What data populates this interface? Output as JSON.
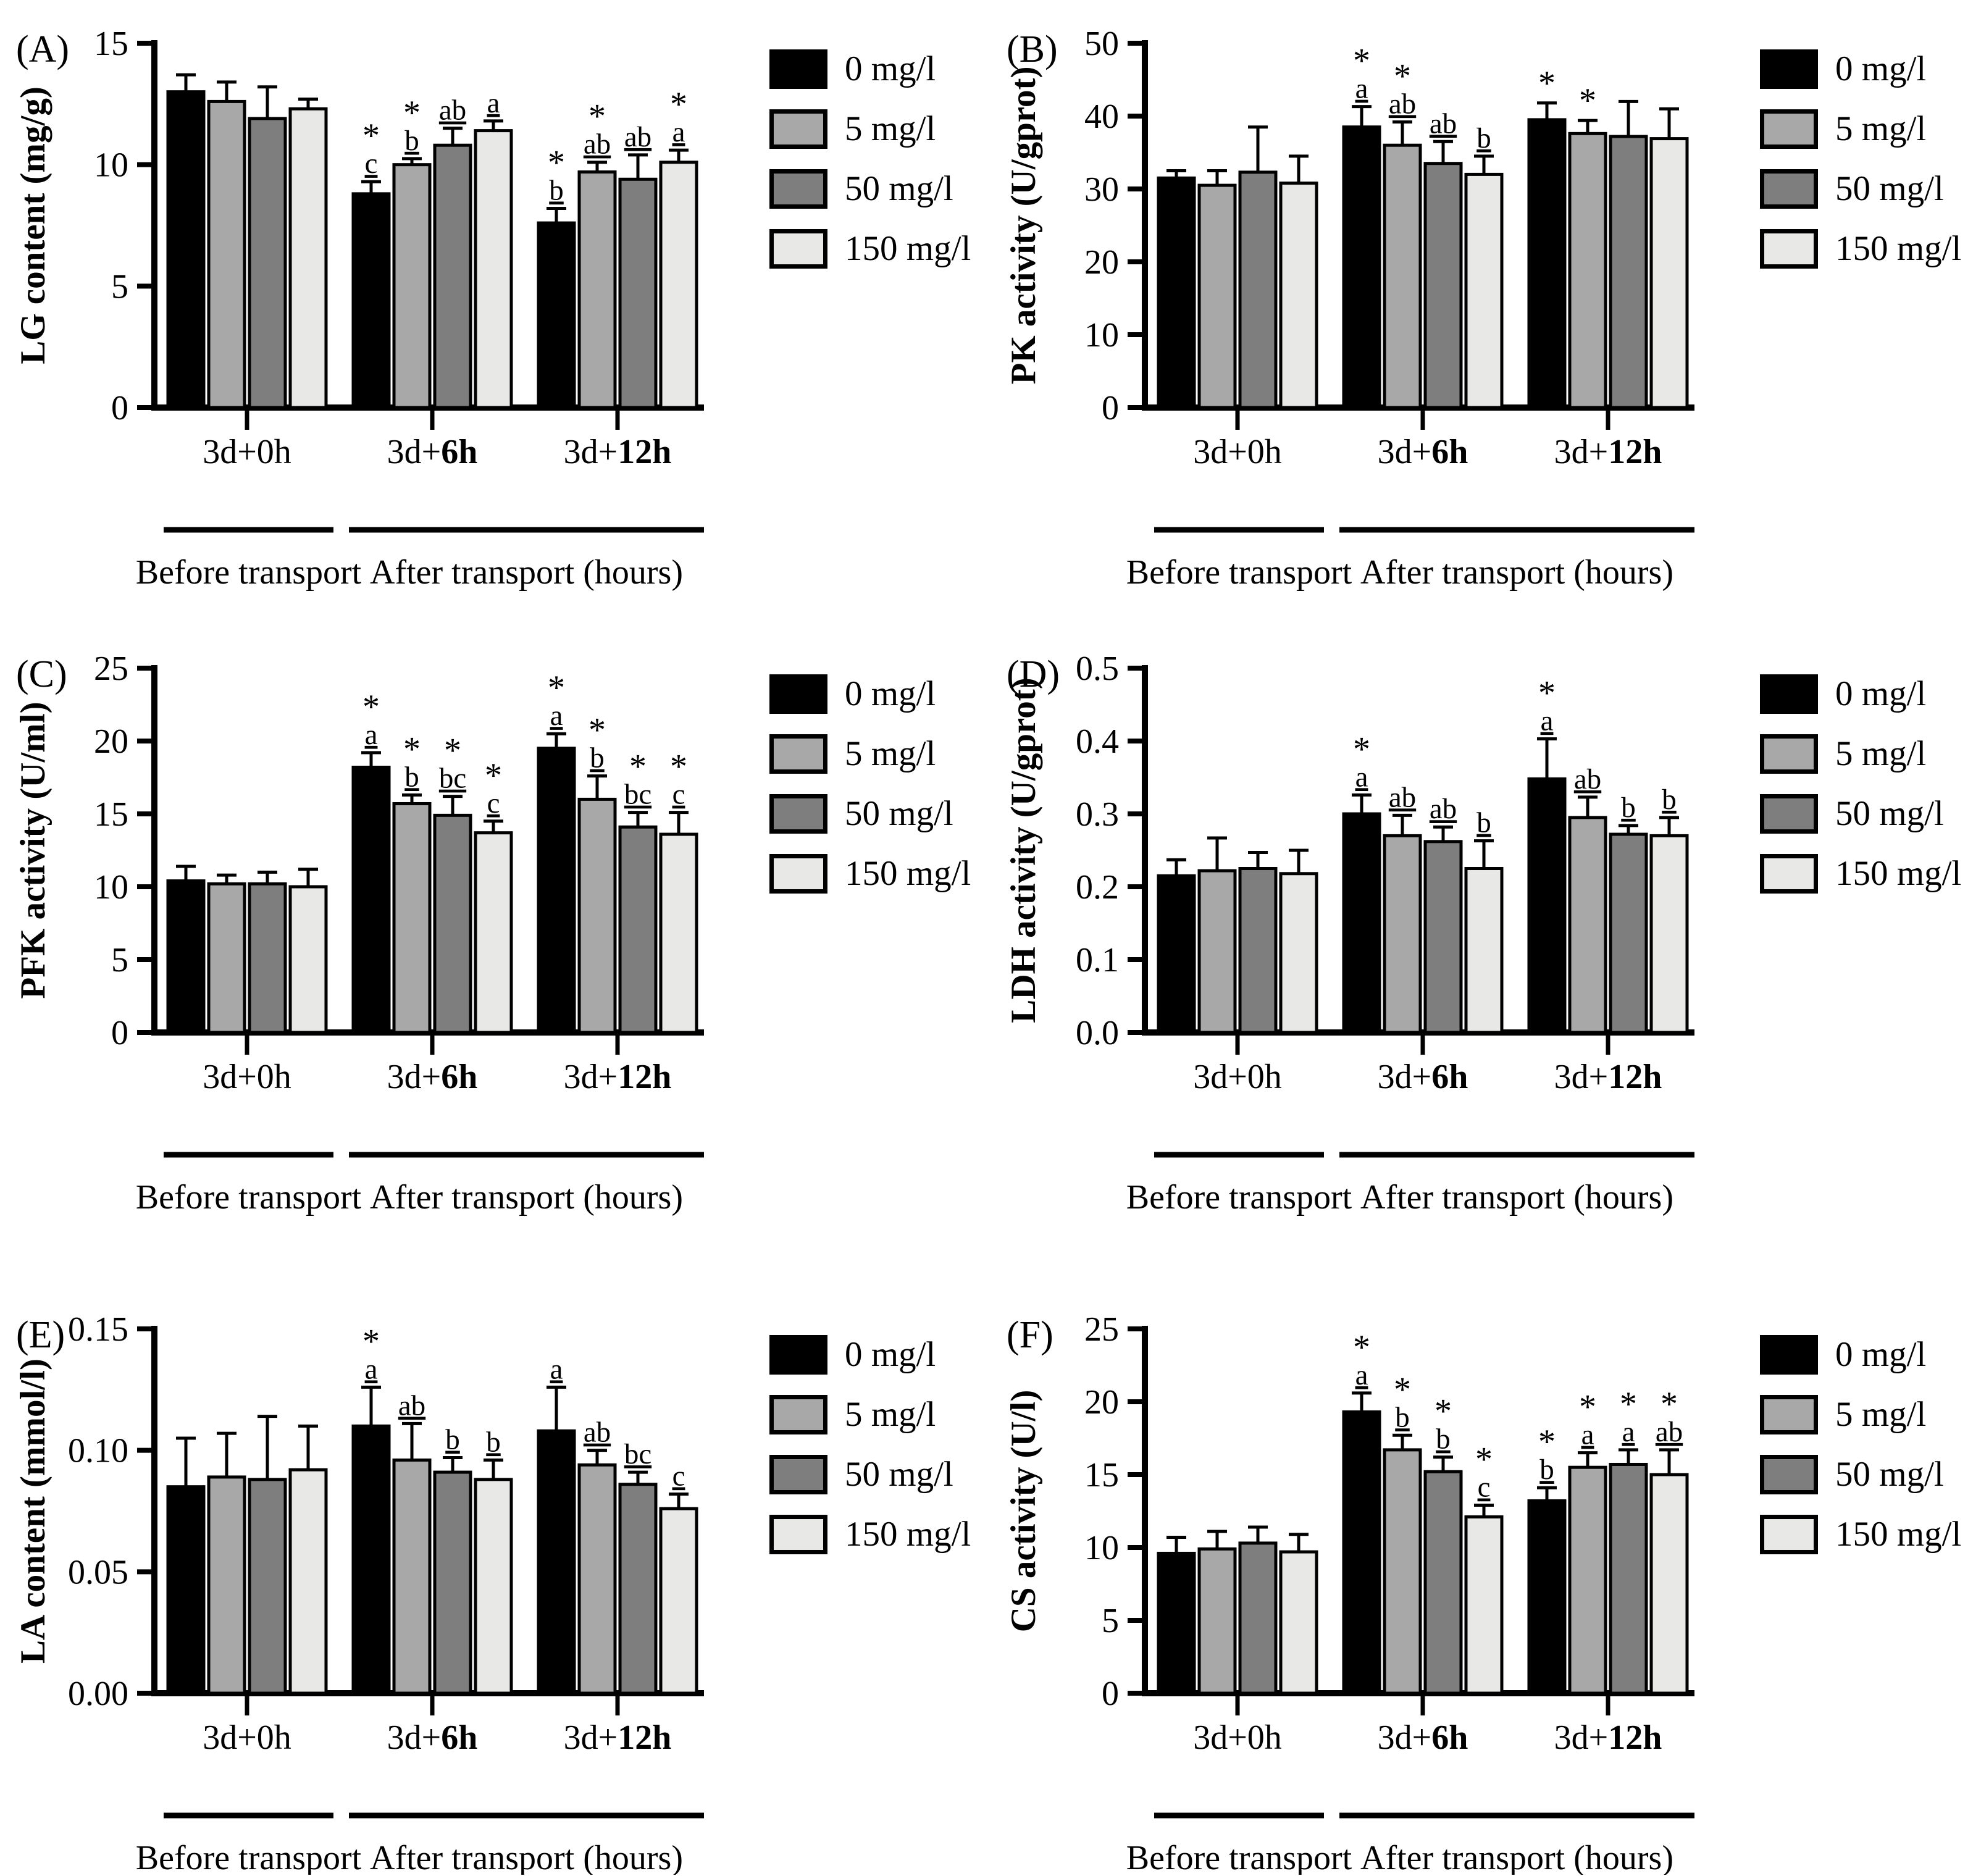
{
  "figure": {
    "legend": {
      "items": [
        {
          "label": "0 mg/l",
          "color": "#000000"
        },
        {
          "label": "5 mg/l",
          "color": "#a8a8a8"
        },
        {
          "label": "50 mg/l",
          "color": "#7e7e7e"
        },
        {
          "label": "150 mg/l",
          "color": "#e8e8e6"
        }
      ]
    },
    "x_groups": [
      {
        "prefix": "3d+",
        "suffix": "0h",
        "suffix_bold": false
      },
      {
        "prefix": "3d+",
        "suffix": "6h",
        "suffix_bold": true
      },
      {
        "prefix": "3d+",
        "suffix": "12h",
        "suffix_bold": true
      }
    ],
    "brackets": [
      {
        "label": "Before transport",
        "from_group": 0,
        "to_group": 0
      },
      {
        "label": "After transport (hours)",
        "from_group": 1,
        "to_group": 2
      }
    ]
  },
  "chart_data": [
    {
      "type": "bar",
      "panel": "(A)",
      "ylabel": "LG content (mg/g)",
      "ylim": [
        0,
        15
      ],
      "yticks": [
        0,
        5,
        10,
        15
      ],
      "ytick_labels": [
        "0",
        "5",
        "10",
        "15"
      ],
      "categories": [
        "3d+0h",
        "3d+6h",
        "3d+12h"
      ],
      "series": [
        {
          "name": "0 mg/l",
          "color": "#000000",
          "values": [
            13.0,
            8.8,
            7.6
          ],
          "errors": [
            0.7,
            0.5,
            0.6
          ],
          "annotations": [
            "",
            "*c",
            "*b"
          ]
        },
        {
          "name": "5 mg/l",
          "color": "#a8a8a8",
          "values": [
            12.6,
            10.0,
            9.7
          ],
          "errors": [
            0.8,
            0.25,
            0.4
          ],
          "annotations": [
            "",
            "*b",
            "*ab"
          ]
        },
        {
          "name": "50 mg/l",
          "color": "#7e7e7e",
          "values": [
            11.9,
            10.8,
            9.4
          ],
          "errors": [
            1.3,
            0.7,
            1.0
          ],
          "annotations": [
            "",
            "ab",
            "ab"
          ]
        },
        {
          "name": "150 mg/l",
          "color": "#e8e8e6",
          "values": [
            12.3,
            11.4,
            10.1
          ],
          "errors": [
            0.4,
            0.4,
            0.5
          ],
          "annotations": [
            "",
            "a",
            "*a"
          ]
        }
      ]
    },
    {
      "type": "bar",
      "panel": "(B)",
      "ylabel": "PK activity (U/gprot)",
      "ylim": [
        0,
        50
      ],
      "yticks": [
        0,
        10,
        20,
        30,
        40,
        50
      ],
      "ytick_labels": [
        "0",
        "10",
        "20",
        "30",
        "40",
        "50"
      ],
      "categories": [
        "3d+0h",
        "3d+6h",
        "3d+12h"
      ],
      "series": [
        {
          "name": "0 mg/l",
          "color": "#000000",
          "values": [
            31.5,
            38.5,
            39.5
          ],
          "errors": [
            1.0,
            2.8,
            2.3
          ],
          "annotations": [
            "",
            "*a",
            "*"
          ]
        },
        {
          "name": "5 mg/l",
          "color": "#a8a8a8",
          "values": [
            30.5,
            36.0,
            37.6
          ],
          "errors": [
            2.0,
            3.2,
            1.8
          ],
          "annotations": [
            "",
            "*ab",
            "*"
          ]
        },
        {
          "name": "50 mg/l",
          "color": "#7e7e7e",
          "values": [
            32.3,
            33.5,
            37.2
          ],
          "errors": [
            6.2,
            3.0,
            4.8
          ],
          "annotations": [
            "",
            "ab",
            ""
          ]
        },
        {
          "name": "150 mg/l",
          "color": "#e8e8e6",
          "values": [
            30.8,
            32.0,
            36.9
          ],
          "errors": [
            3.7,
            2.5,
            4.1
          ],
          "annotations": [
            "",
            "b",
            ""
          ]
        }
      ]
    },
    {
      "type": "bar",
      "panel": "(C)",
      "ylabel": "PFK activity (U/ml)",
      "ylim": [
        0,
        25
      ],
      "yticks": [
        0,
        5,
        10,
        15,
        20,
        25
      ],
      "ytick_labels": [
        "0",
        "5",
        "10",
        "15",
        "20",
        "25"
      ],
      "categories": [
        "3d+0h",
        "3d+6h",
        "3d+12h"
      ],
      "series": [
        {
          "name": "0 mg/l",
          "color": "#000000",
          "values": [
            10.4,
            18.2,
            19.5
          ],
          "errors": [
            1.0,
            1.0,
            1.0
          ],
          "annotations": [
            "",
            "*a",
            "*a"
          ]
        },
        {
          "name": "5 mg/l",
          "color": "#a8a8a8",
          "values": [
            10.2,
            15.7,
            16.0
          ],
          "errors": [
            0.6,
            0.6,
            1.6
          ],
          "annotations": [
            "",
            "*b",
            "*b"
          ]
        },
        {
          "name": "50 mg/l",
          "color": "#7e7e7e",
          "values": [
            10.2,
            14.9,
            14.1
          ],
          "errors": [
            0.8,
            1.3,
            1.0
          ],
          "annotations": [
            "",
            "*bc",
            "*bc"
          ]
        },
        {
          "name": "150 mg/l",
          "color": "#e8e8e6",
          "values": [
            10.0,
            13.7,
            13.6
          ],
          "errors": [
            1.2,
            0.8,
            1.5
          ],
          "annotations": [
            "",
            "*c",
            "*c"
          ]
        }
      ]
    },
    {
      "type": "bar",
      "panel": "(D)",
      "ylabel": "LDH activity (U/gprot)",
      "ylim": [
        0,
        0.5
      ],
      "yticks": [
        0,
        0.1,
        0.2,
        0.3,
        0.4,
        0.5
      ],
      "ytick_labels": [
        "0.0",
        "0.1",
        "0.2",
        "0.3",
        "0.4",
        "0.5"
      ],
      "categories": [
        "3d+0h",
        "3d+6h",
        "3d+12h"
      ],
      "series": [
        {
          "name": "0 mg/l",
          "color": "#000000",
          "values": [
            0.215,
            0.3,
            0.348
          ],
          "errors": [
            0.022,
            0.026,
            0.055
          ],
          "annotations": [
            "",
            "*a",
            "*a"
          ]
        },
        {
          "name": "5 mg/l",
          "color": "#a8a8a8",
          "values": [
            0.222,
            0.27,
            0.295
          ],
          "errors": [
            0.045,
            0.028,
            0.028
          ],
          "annotations": [
            "",
            "ab",
            "ab"
          ]
        },
        {
          "name": "50 mg/l",
          "color": "#7e7e7e",
          "values": [
            0.225,
            0.262,
            0.272
          ],
          "errors": [
            0.022,
            0.02,
            0.012
          ],
          "annotations": [
            "",
            "ab",
            "b"
          ]
        },
        {
          "name": "150 mg/l",
          "color": "#e8e8e6",
          "values": [
            0.218,
            0.225,
            0.27
          ],
          "errors": [
            0.032,
            0.038,
            0.025
          ],
          "annotations": [
            "",
            "b",
            "b"
          ]
        }
      ]
    },
    {
      "type": "bar",
      "panel": "(E)",
      "ylabel": "LA content (mmol/l)",
      "ylim": [
        0,
        0.15
      ],
      "yticks": [
        0,
        0.05,
        0.1,
        0.15
      ],
      "ytick_labels": [
        "0.00",
        "0.05",
        "0.10",
        "0.15"
      ],
      "categories": [
        "3d+0h",
        "3d+6h",
        "3d+12h"
      ],
      "series": [
        {
          "name": "0 mg/l",
          "color": "#000000",
          "values": [
            0.085,
            0.11,
            0.108
          ],
          "errors": [
            0.02,
            0.016,
            0.018
          ],
          "annotations": [
            "",
            "*a",
            "a"
          ]
        },
        {
          "name": "5 mg/l",
          "color": "#a8a8a8",
          "values": [
            0.089,
            0.096,
            0.094
          ],
          "errors": [
            0.018,
            0.015,
            0.006
          ],
          "annotations": [
            "",
            "ab",
            "ab"
          ]
        },
        {
          "name": "50 mg/l",
          "color": "#7e7e7e",
          "values": [
            0.088,
            0.091,
            0.086
          ],
          "errors": [
            0.026,
            0.006,
            0.005
          ],
          "annotations": [
            "",
            "b",
            "bc"
          ]
        },
        {
          "name": "150 mg/l",
          "color": "#e8e8e6",
          "values": [
            0.092,
            0.088,
            0.076
          ],
          "errors": [
            0.018,
            0.008,
            0.006
          ],
          "annotations": [
            "",
            "b",
            "c"
          ]
        }
      ]
    },
    {
      "type": "bar",
      "panel": "(F)",
      "ylabel": "CS activity (U/l)",
      "ylim": [
        0,
        25
      ],
      "yticks": [
        0,
        5,
        10,
        15,
        20,
        25
      ],
      "ytick_labels": [
        "0",
        "5",
        "10",
        "15",
        "20",
        "25"
      ],
      "categories": [
        "3d+0h",
        "3d+6h",
        "3d+12h"
      ],
      "series": [
        {
          "name": "0 mg/l",
          "color": "#000000",
          "values": [
            9.6,
            19.3,
            13.2
          ],
          "errors": [
            1.1,
            1.3,
            0.9
          ],
          "annotations": [
            "",
            "*a",
            "*b"
          ]
        },
        {
          "name": "5 mg/l",
          "color": "#a8a8a8",
          "values": [
            9.9,
            16.7,
            15.5
          ],
          "errors": [
            1.2,
            1.0,
            1.0
          ],
          "annotations": [
            "",
            "*b",
            "*a"
          ]
        },
        {
          "name": "50 mg/l",
          "color": "#7e7e7e",
          "values": [
            10.3,
            15.2,
            15.7
          ],
          "errors": [
            1.1,
            1.0,
            1.0
          ],
          "annotations": [
            "",
            "*b",
            "*a"
          ]
        },
        {
          "name": "150 mg/l",
          "color": "#e8e8e6",
          "values": [
            9.7,
            12.1,
            15.0
          ],
          "errors": [
            1.2,
            0.8,
            1.7
          ],
          "annotations": [
            "",
            "*c",
            "*ab"
          ]
        }
      ]
    }
  ]
}
